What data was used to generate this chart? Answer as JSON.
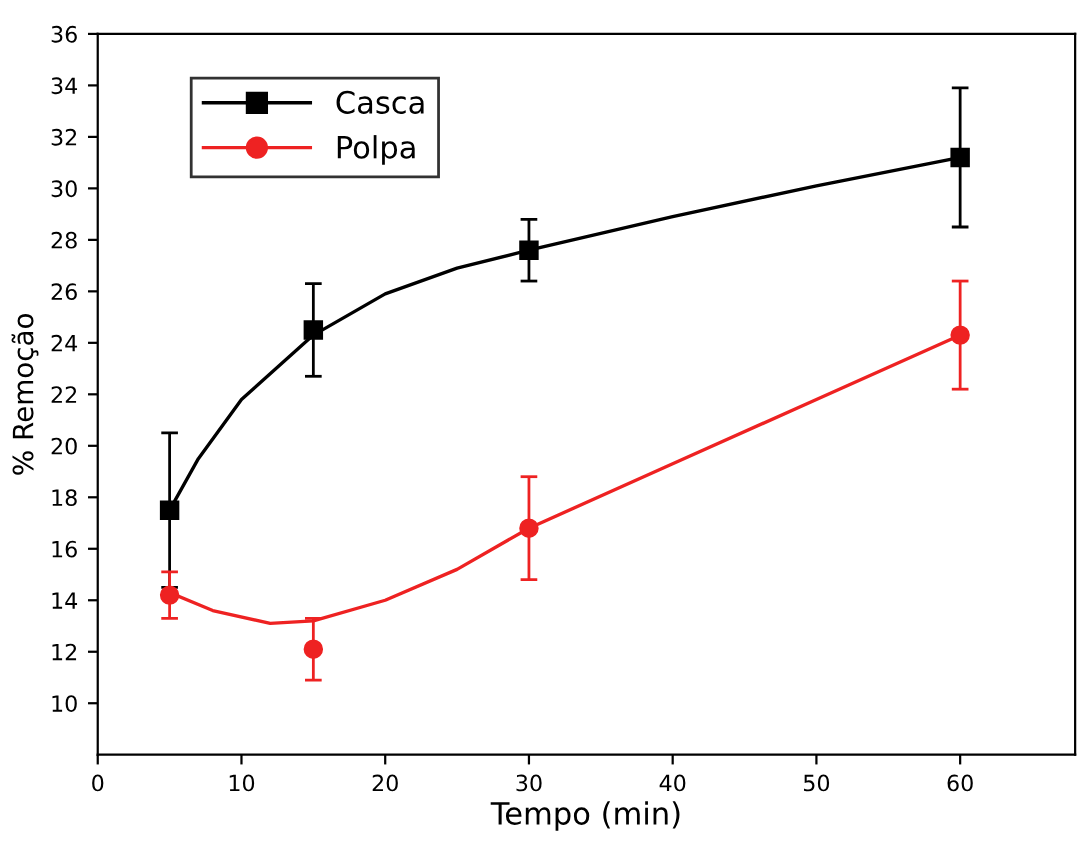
{
  "chart_data": {
    "type": "scatter",
    "xlabel": "Tempo (min)",
    "ylabel": "% Remoção",
    "xlim": [
      0,
      68
    ],
    "xticks": [
      0,
      10,
      20,
      30,
      40,
      50,
      60
    ],
    "ylim": [
      8,
      36
    ],
    "yticks": [
      10,
      12,
      14,
      16,
      18,
      20,
      22,
      24,
      26,
      28,
      30,
      32,
      34,
      36
    ],
    "grid": false,
    "legend": "top left",
    "series": [
      {
        "type": "line",
        "color": "#000000",
        "marker": "none",
        "x": [
          5,
          7,
          10,
          15,
          20,
          25,
          30,
          40,
          50,
          60
        ],
        "values": [
          17.5,
          19.5,
          21.8,
          24.3,
          25.9,
          26.9,
          27.6,
          28.9,
          30.1,
          31.2
        ]
      },
      {
        "type": "line",
        "color": "#ee2222",
        "marker": "none",
        "x": [
          5,
          8,
          12,
          15,
          20,
          25,
          30,
          40,
          50,
          60
        ],
        "values": [
          14.3,
          13.6,
          13.1,
          13.2,
          14.0,
          15.2,
          16.8,
          19.3,
          21.8,
          24.3
        ]
      },
      {
        "name": "Casca",
        "color": "#000000",
        "marker": "square",
        "x": [
          5,
          15,
          30,
          60
        ],
        "values": [
          17.5,
          24.5,
          27.6,
          31.2
        ],
        "errors": [
          3.0,
          1.8,
          1.2,
          2.7
        ]
      },
      {
        "name": "Polpa",
        "color": "#ee2222",
        "marker": "circle",
        "x": [
          5,
          15,
          30,
          60
        ],
        "values": [
          14.2,
          12.1,
          16.8,
          24.3
        ],
        "errors": [
          0.9,
          1.2,
          2.0,
          2.1
        ]
      }
    ]
  }
}
